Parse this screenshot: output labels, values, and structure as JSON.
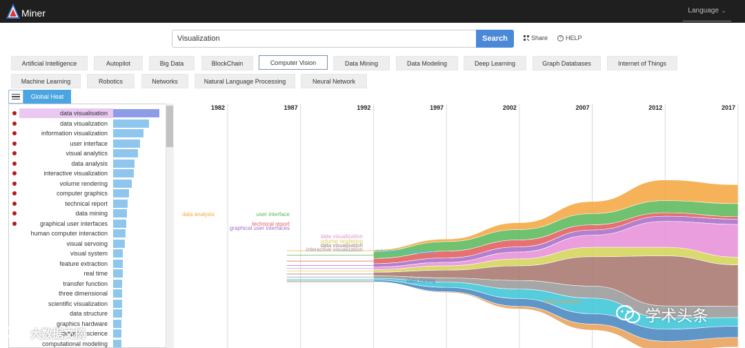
{
  "app": {
    "logo_text": "Miner"
  },
  "header": {
    "language_label": "Language"
  },
  "search": {
    "value": "Visualization",
    "button_label": "Search",
    "share_label": "Share",
    "help_label": "HELP"
  },
  "categories": [
    "Artificial Intelligence",
    "Autopilot",
    "Big Data",
    "BlockChain",
    "Computer Vision",
    "Data Mining",
    "Data Modeling",
    "Deep Learning",
    "Graph Databases",
    "Internet of Things",
    "Machine Learning",
    "Robotics",
    "Networks",
    "Natural Language Processing",
    "Neural Network"
  ],
  "selected_category": "Computer Vision",
  "list_tab": {
    "label": "Global Heat"
  },
  "topics": [
    {
      "label": "data visualisation",
      "value": 100,
      "dot": true,
      "highlight": true
    },
    {
      "label": "data visualization",
      "value": 77,
      "dot": true
    },
    {
      "label": "information visualization",
      "value": 65,
      "dot": true
    },
    {
      "label": "user interface",
      "value": 58,
      "dot": true
    },
    {
      "label": "visual analytics",
      "value": 53,
      "dot": true
    },
    {
      "label": "data analysis",
      "value": 47,
      "dot": true
    },
    {
      "label": "interactive visualization",
      "value": 45,
      "dot": true
    },
    {
      "label": "volume rendering",
      "value": 40,
      "dot": true
    },
    {
      "label": "computer graphics",
      "value": 35,
      "dot": true
    },
    {
      "label": "technical report",
      "value": 32,
      "dot": true
    },
    {
      "label": "data mining",
      "value": 30,
      "dot": true
    },
    {
      "label": "graphical user interfaces",
      "value": 28,
      "dot": true
    },
    {
      "label": "human computer interaction",
      "value": 27,
      "dot": false
    },
    {
      "label": "visual servoing",
      "value": 25,
      "dot": false
    },
    {
      "label": "visual system",
      "value": 21,
      "dot": false
    },
    {
      "label": "feature extraction",
      "value": 21,
      "dot": false
    },
    {
      "label": "real time",
      "value": 21,
      "dot": false
    },
    {
      "label": "transfer function",
      "value": 20,
      "dot": false
    },
    {
      "label": "three dimensional",
      "value": 20,
      "dot": false
    },
    {
      "label": "scientific visualization",
      "value": 19,
      "dot": false
    },
    {
      "label": "data structure",
      "value": 19,
      "dot": false
    },
    {
      "label": "graphics hardware",
      "value": 18,
      "dot": false
    },
    {
      "label": "computer science",
      "value": 18,
      "dot": false
    },
    {
      "label": "computational modeling",
      "value": 18,
      "dot": false
    }
  ],
  "chart_data": {
    "type": "area",
    "x": [
      1982,
      1987,
      1992,
      1997,
      2002,
      2007,
      2012,
      2017
    ],
    "tick_labels": [
      "1982",
      "1987",
      "1992",
      "1997",
      "2002",
      "2007",
      "2012",
      "2017"
    ],
    "series": [
      {
        "name": "data analysis",
        "color": "#f5a742",
        "values": [
          0,
          0,
          2,
          3,
          8,
          14,
          24,
          22
        ]
      },
      {
        "name": "user interface",
        "color": "#5cb85c",
        "values": [
          0,
          0,
          8,
          11,
          12,
          13,
          14,
          15
        ]
      },
      {
        "name": "technical report",
        "color": "#e35d5d",
        "values": [
          0,
          0,
          6,
          8,
          8,
          6,
          4,
          3
        ]
      },
      {
        "name": "graphical user interfaces",
        "color": "#a86dc8",
        "values": [
          0,
          0,
          4,
          5,
          6,
          6,
          6,
          6
        ]
      },
      {
        "name": "data visualization",
        "color": "#e891d8",
        "values": [
          0,
          0,
          3,
          4,
          8,
          14,
          30,
          38
        ]
      },
      {
        "name": "volume rendering",
        "color": "#d4d45a",
        "values": [
          0,
          0,
          3,
          5,
          8,
          11,
          10,
          9
        ]
      },
      {
        "name": "data visualisation",
        "color": "#a7776e",
        "values": [
          0,
          0,
          4,
          9,
          17,
          34,
          58,
          48
        ]
      },
      {
        "name": "interactive visualization",
        "color": "#9a9a9a",
        "values": [
          0,
          0,
          3,
          5,
          10,
          14,
          14,
          13
        ]
      },
      {
        "name": "information visualization",
        "color": "#3ec6d8",
        "values": [
          0,
          0,
          2,
          6,
          11,
          18,
          13,
          10
        ]
      },
      {
        "name": "data mining",
        "color": "#4a86c0",
        "values": [
          0,
          0,
          2,
          5,
          9,
          12,
          14,
          13
        ]
      },
      {
        "name": "visual analytics",
        "color": "#e8a15a",
        "values": [
          0,
          0,
          0,
          1,
          3,
          7,
          12,
          11
        ]
      }
    ],
    "grid": true
  },
  "watermark": {
    "left_text": "大数据文摘",
    "right_text": "学术头条"
  },
  "colors": {
    "topbar": "#1f1f1f",
    "search_button": "#4a88d8",
    "tab": "#4aa5e0",
    "bar": "#8ec6ee",
    "dot": "#b01c1c"
  }
}
